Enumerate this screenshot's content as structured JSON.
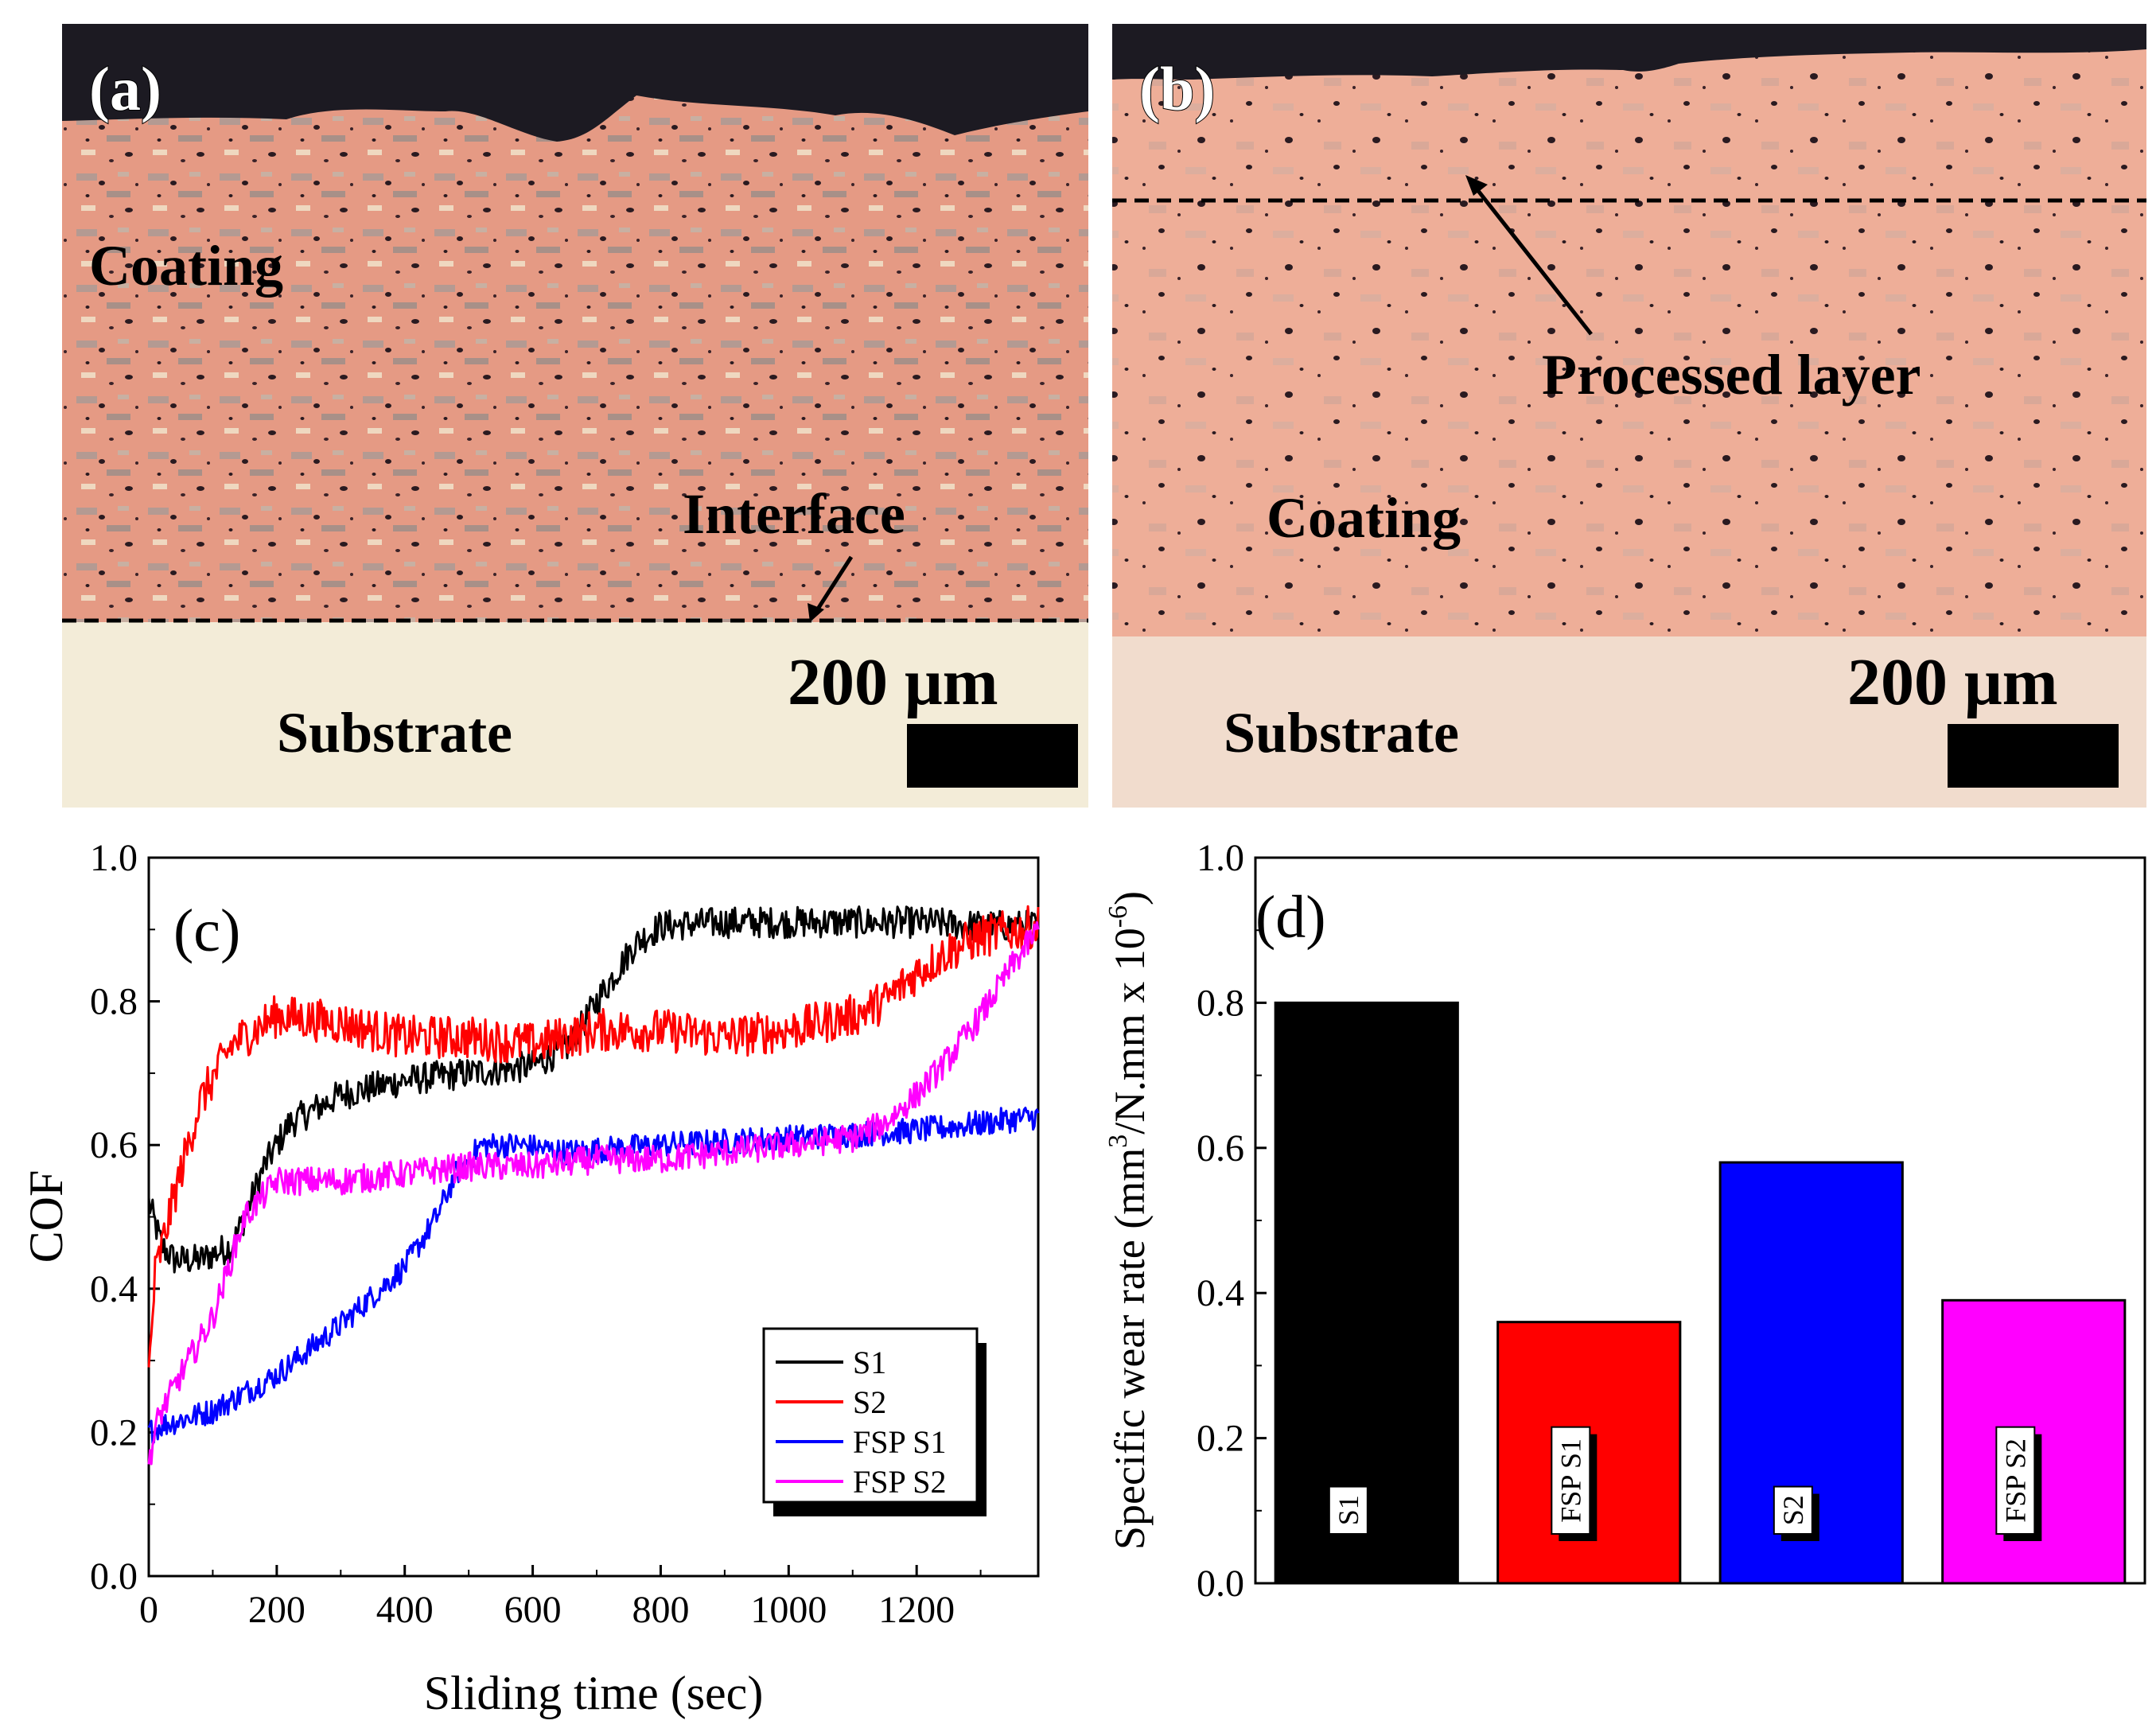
{
  "colors": {
    "s1": "#000000",
    "s2": "#ff0000",
    "fsp_s1": "#0000ff",
    "fsp_s2": "#ff00ff",
    "coating_base": "#e8a08a",
    "substrate_base": "#f3ecd8",
    "dark_top": "#1c1a22"
  },
  "panel_a": {
    "label": "(a)",
    "coating": "Coating",
    "interface": "Interface",
    "substrate": "Substrate",
    "scale": "200 μm"
  },
  "panel_b": {
    "label": "(b)",
    "processed_layer": "Processed layer",
    "coating": "Coating",
    "substrate": "Substrate",
    "scale": "200 μm"
  },
  "chart_data": [
    {
      "type": "line",
      "panel": "(c)",
      "xlabel": "Sliding time (sec)",
      "ylabel": "COF",
      "xlim": [
        0,
        1390
      ],
      "ylim": [
        0.0,
        1.0
      ],
      "xticks": [
        "0",
        "200",
        "400",
        "600",
        "800",
        "1000",
        "1200"
      ],
      "yticks": [
        "0.0",
        "0.2",
        "0.4",
        "0.6",
        "0.8",
        "1.0"
      ],
      "legend": [
        "S1",
        "S2",
        "FSP S1",
        "FSP S2"
      ],
      "legend_position": "bottom-right",
      "series": [
        {
          "name": "S1",
          "noise": 0.022,
          "x": [
            0,
            20,
            40,
            80,
            130,
            150,
            180,
            220,
            300,
            400,
            500,
            600,
            660,
            700,
            760,
            800,
            900,
            1000,
            1100,
            1200,
            1300,
            1390
          ],
          "y": [
            0.52,
            0.46,
            0.44,
            0.44,
            0.46,
            0.5,
            0.57,
            0.63,
            0.67,
            0.69,
            0.7,
            0.71,
            0.74,
            0.8,
            0.88,
            0.905,
            0.91,
            0.91,
            0.91,
            0.91,
            0.905,
            0.905
          ]
        },
        {
          "name": "S2",
          "noise": 0.03,
          "x": [
            0,
            10,
            40,
            80,
            130,
            200,
            300,
            400,
            500,
            600,
            700,
            800,
            900,
            1000,
            1100,
            1150,
            1200,
            1250,
            1300,
            1390
          ],
          "y": [
            0.28,
            0.42,
            0.53,
            0.66,
            0.74,
            0.78,
            0.77,
            0.75,
            0.75,
            0.74,
            0.76,
            0.76,
            0.75,
            0.76,
            0.78,
            0.8,
            0.84,
            0.87,
            0.89,
            0.905
          ]
        },
        {
          "name": "FSP S1",
          "noise": 0.018,
          "x": [
            0,
            20,
            100,
            200,
            300,
            400,
            450,
            480,
            520,
            580,
            650,
            800,
            1000,
            1200,
            1300,
            1390
          ],
          "y": [
            0.2,
            0.21,
            0.23,
            0.28,
            0.35,
            0.43,
            0.5,
            0.56,
            0.6,
            0.6,
            0.59,
            0.6,
            0.61,
            0.62,
            0.63,
            0.64
          ]
        },
        {
          "name": "FSP S2",
          "noise": 0.02,
          "x": [
            0,
            15,
            50,
            100,
            150,
            200,
            300,
            400,
            500,
            600,
            700,
            800,
            900,
            1000,
            1100,
            1150,
            1200,
            1250,
            1300,
            1350,
            1390
          ],
          "y": [
            0.16,
            0.22,
            0.28,
            0.36,
            0.5,
            0.55,
            0.55,
            0.56,
            0.57,
            0.57,
            0.58,
            0.58,
            0.59,
            0.6,
            0.61,
            0.63,
            0.67,
            0.72,
            0.78,
            0.85,
            0.9
          ]
        }
      ]
    },
    {
      "type": "bar",
      "panel": "(d)",
      "ylabel_prefix": "Specific wear rate (mm",
      "ylabel_sup1": "3",
      "ylabel_mid": "/N.mm x 10",
      "ylabel_sup2": "-6",
      "ylabel_suffix": ")",
      "ylim": [
        0.0,
        1.0
      ],
      "yticks": [
        "0.0",
        "0.2",
        "0.4",
        "0.6",
        "0.8",
        "1.0"
      ],
      "categories": [
        "S1",
        "FSP S1",
        "S2",
        "FSP S2"
      ],
      "values": [
        0.8,
        0.36,
        0.58,
        0.39
      ]
    }
  ]
}
